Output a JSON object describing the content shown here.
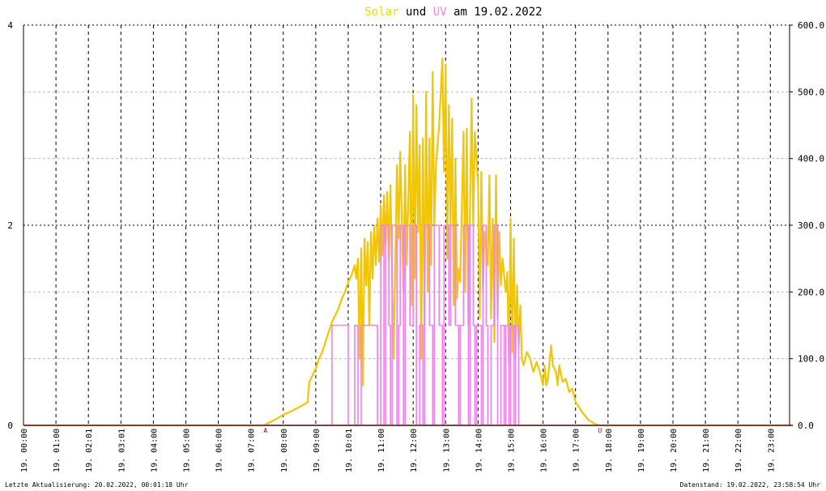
{
  "title": {
    "solar": "Solar",
    "und": "und",
    "uv": "UV",
    "rest": "am 19.02.2022"
  },
  "footer": {
    "left": "Letzte Aktualisierung: 20.02.2022, 00:01:18 Uhr",
    "right": "Datenstand: 19.02.2022, 23:58:54 Uhr"
  },
  "markers": {
    "sunrise": "A",
    "sunset": "U"
  },
  "colors": {
    "solar": "#f2c600",
    "uv": "#ee82ee",
    "baseline": "#f08080",
    "marker": "#c00000",
    "title_solar": "#ffd700",
    "title_uv": "#ee82ee",
    "grid_major": "#000000",
    "grid_minor": "#bbbbbb",
    "text": "#000000"
  },
  "chart_data": {
    "type": "line",
    "grid": true,
    "x_tick_labels": [
      "19. 00:00",
      "19. 01:00",
      "19. 02:01",
      "19. 03:01",
      "19. 04:00",
      "19. 05:00",
      "19. 06:00",
      "19. 07:00",
      "19. 08:00",
      "19. 09:00",
      "19. 10:01",
      "19. 11:00",
      "19. 12:00",
      "19. 13:00",
      "19. 14:00",
      "19. 15:00",
      "19. 16:00",
      "19. 17:00",
      "19. 18:00",
      "19. 19:00",
      "19. 20:00",
      "19. 21:00",
      "19. 22:00",
      "19. 23:00"
    ],
    "x_range_hours": [
      0,
      23.7
    ],
    "left_axis": {
      "ylim": [
        0,
        4
      ],
      "ticks": [
        0,
        2,
        4
      ]
    },
    "right_axis": {
      "ylim": [
        0,
        600
      ],
      "ticks": [
        "0.0",
        "100.0",
        "200.0",
        "300.0",
        "400.0",
        "500.0",
        "600.0"
      ]
    },
    "series": [
      {
        "name": "Solar",
        "axis": "right",
        "color": "#f2c600",
        "points": [
          [
            0,
            0
          ],
          [
            7.4,
            0
          ],
          [
            7.6,
            5
          ],
          [
            7.8,
            10
          ],
          [
            8.0,
            16
          ],
          [
            8.2,
            20
          ],
          [
            8.4,
            25
          ],
          [
            8.6,
            30
          ],
          [
            8.75,
            35
          ],
          [
            8.8,
            65
          ],
          [
            8.9,
            75
          ],
          [
            9.0,
            85
          ],
          [
            9.1,
            100
          ],
          [
            9.2,
            110
          ],
          [
            9.3,
            125
          ],
          [
            9.4,
            140
          ],
          [
            9.5,
            155
          ],
          [
            9.6,
            165
          ],
          [
            9.7,
            175
          ],
          [
            9.8,
            190
          ],
          [
            9.9,
            200
          ],
          [
            10.0,
            215
          ],
          [
            10.1,
            225
          ],
          [
            10.2,
            240
          ],
          [
            10.25,
            220
          ],
          [
            10.3,
            250
          ],
          [
            10.35,
            100
          ],
          [
            10.4,
            265
          ],
          [
            10.45,
            60
          ],
          [
            10.5,
            280
          ],
          [
            10.55,
            210
          ],
          [
            10.6,
            275
          ],
          [
            10.65,
            150
          ],
          [
            10.7,
            290
          ],
          [
            10.75,
            220
          ],
          [
            10.8,
            300
          ],
          [
            10.85,
            240
          ],
          [
            10.9,
            310
          ],
          [
            10.95,
            245
          ],
          [
            11.0,
            330
          ],
          [
            11.05,
            255
          ],
          [
            11.1,
            345
          ],
          [
            11.15,
            270
          ],
          [
            11.2,
            350
          ],
          [
            11.25,
            250
          ],
          [
            11.3,
            360
          ],
          [
            11.4,
            100
          ],
          [
            11.5,
            390
          ],
          [
            11.55,
            280
          ],
          [
            11.6,
            410
          ],
          [
            11.7,
            200
          ],
          [
            11.75,
            390
          ],
          [
            11.8,
            240
          ],
          [
            11.9,
            440
          ],
          [
            11.95,
            180
          ],
          [
            12.0,
            495
          ],
          [
            12.05,
            220
          ],
          [
            12.1,
            480
          ],
          [
            12.15,
            290
          ],
          [
            12.2,
            420
          ],
          [
            12.25,
            100
          ],
          [
            12.3,
            430
          ],
          [
            12.35,
            150
          ],
          [
            12.4,
            500
          ],
          [
            12.45,
            200
          ],
          [
            12.5,
            430
          ],
          [
            12.55,
            240
          ],
          [
            12.6,
            530
          ],
          [
            12.65,
            300
          ],
          [
            12.7,
            390
          ],
          [
            12.8,
            450
          ],
          [
            12.85,
            500
          ],
          [
            12.9,
            550
          ],
          [
            12.95,
            380
          ],
          [
            13.0,
            540
          ],
          [
            13.05,
            250
          ],
          [
            13.1,
            480
          ],
          [
            13.15,
            300
          ],
          [
            13.2,
            460
          ],
          [
            13.25,
            180
          ],
          [
            13.3,
            400
          ],
          [
            13.35,
            190
          ],
          [
            13.4,
            235
          ],
          [
            13.45,
            215
          ],
          [
            13.55,
            440
          ],
          [
            13.6,
            200
          ],
          [
            13.65,
            445
          ],
          [
            13.7,
            150
          ],
          [
            13.8,
            490
          ],
          [
            13.85,
            300
          ],
          [
            13.9,
            440
          ],
          [
            14.0,
            360
          ],
          [
            14.05,
            160
          ],
          [
            14.1,
            380
          ],
          [
            14.15,
            200
          ],
          [
            14.2,
            290
          ],
          [
            14.3,
            240
          ],
          [
            14.35,
            375
          ],
          [
            14.4,
            160
          ],
          [
            14.45,
            310
          ],
          [
            14.5,
            125
          ],
          [
            14.55,
            375
          ],
          [
            14.6,
            160
          ],
          [
            14.65,
            290
          ],
          [
            14.7,
            210
          ],
          [
            14.75,
            250
          ],
          [
            14.85,
            200
          ],
          [
            14.9,
            230
          ],
          [
            14.95,
            90
          ],
          [
            15.0,
            310
          ],
          [
            15.05,
            110
          ],
          [
            15.1,
            280
          ],
          [
            15.15,
            100
          ],
          [
            15.2,
            210
          ],
          [
            15.25,
            120
          ],
          [
            15.3,
            180
          ],
          [
            15.35,
            100
          ],
          [
            15.4,
            90
          ],
          [
            15.5,
            110
          ],
          [
            15.6,
            100
          ],
          [
            15.7,
            80
          ],
          [
            15.8,
            95
          ],
          [
            15.9,
            80
          ],
          [
            16.0,
            60
          ],
          [
            16.05,
            90
          ],
          [
            16.1,
            60
          ],
          [
            16.15,
            70
          ],
          [
            16.2,
            95
          ],
          [
            16.25,
            120
          ],
          [
            16.3,
            90
          ],
          [
            16.4,
            80
          ],
          [
            16.45,
            60
          ],
          [
            16.5,
            90
          ],
          [
            16.6,
            65
          ],
          [
            16.7,
            70
          ],
          [
            16.8,
            50
          ],
          [
            16.9,
            55
          ],
          [
            17.0,
            35
          ],
          [
            17.2,
            20
          ],
          [
            17.4,
            8
          ],
          [
            17.6,
            2
          ],
          [
            17.75,
            0
          ],
          [
            23.7,
            0
          ]
        ]
      },
      {
        "name": "UV",
        "axis": "left",
        "color": "#ee82ee",
        "points": [
          [
            0,
            0
          ],
          [
            9.5,
            0
          ],
          [
            9.5,
            1
          ],
          [
            10.0,
            1
          ],
          [
            10.0,
            0
          ],
          [
            10.2,
            0
          ],
          [
            10.2,
            1
          ],
          [
            10.3,
            1
          ],
          [
            10.3,
            0
          ],
          [
            10.4,
            0
          ],
          [
            10.4,
            1
          ],
          [
            10.9,
            1
          ],
          [
            10.9,
            0
          ],
          [
            11.0,
            0
          ],
          [
            11.0,
            2
          ],
          [
            11.1,
            2
          ],
          [
            11.1,
            0
          ],
          [
            11.15,
            0
          ],
          [
            11.15,
            2
          ],
          [
            11.25,
            2
          ],
          [
            11.25,
            1
          ],
          [
            11.3,
            1
          ],
          [
            11.3,
            0
          ],
          [
            11.35,
            0
          ],
          [
            11.35,
            2
          ],
          [
            11.5,
            2
          ],
          [
            11.5,
            0
          ],
          [
            11.55,
            0
          ],
          [
            11.55,
            1
          ],
          [
            11.6,
            1
          ],
          [
            11.6,
            2
          ],
          [
            11.7,
            2
          ],
          [
            11.7,
            0
          ],
          [
            11.75,
            0
          ],
          [
            11.75,
            2
          ],
          [
            11.9,
            2
          ],
          [
            11.9,
            1
          ],
          [
            12.0,
            1
          ],
          [
            12.0,
            2
          ],
          [
            12.1,
            2
          ],
          [
            12.1,
            0
          ],
          [
            12.2,
            0
          ],
          [
            12.2,
            1
          ],
          [
            12.3,
            1
          ],
          [
            12.3,
            0
          ],
          [
            12.35,
            0
          ],
          [
            12.35,
            2
          ],
          [
            12.5,
            2
          ],
          [
            12.5,
            1
          ],
          [
            12.6,
            1
          ],
          [
            12.6,
            0
          ],
          [
            12.65,
            0
          ],
          [
            12.65,
            2
          ],
          [
            12.8,
            2
          ],
          [
            12.8,
            1
          ],
          [
            12.9,
            1
          ],
          [
            12.9,
            0
          ],
          [
            12.95,
            0
          ],
          [
            12.95,
            2
          ],
          [
            13.1,
            2
          ],
          [
            13.1,
            1
          ],
          [
            13.15,
            1
          ],
          [
            13.15,
            2
          ],
          [
            13.3,
            2
          ],
          [
            13.3,
            1
          ],
          [
            13.4,
            1
          ],
          [
            13.4,
            0
          ],
          [
            13.45,
            0
          ],
          [
            13.45,
            1
          ],
          [
            13.55,
            1
          ],
          [
            13.55,
            2
          ],
          [
            13.7,
            2
          ],
          [
            13.7,
            0
          ],
          [
            13.75,
            0
          ],
          [
            13.75,
            2
          ],
          [
            13.85,
            2
          ],
          [
            13.85,
            1
          ],
          [
            13.9,
            1
          ],
          [
            13.9,
            0
          ],
          [
            13.95,
            0
          ],
          [
            13.95,
            1
          ],
          [
            14.1,
            1
          ],
          [
            14.1,
            0
          ],
          [
            14.15,
            0
          ],
          [
            14.15,
            2
          ],
          [
            14.25,
            2
          ],
          [
            14.25,
            1
          ],
          [
            14.3,
            1
          ],
          [
            14.3,
            0
          ],
          [
            14.4,
            0
          ],
          [
            14.4,
            1
          ],
          [
            14.5,
            1
          ],
          [
            14.5,
            2
          ],
          [
            14.6,
            2
          ],
          [
            14.6,
            0
          ],
          [
            14.7,
            0
          ],
          [
            14.7,
            1
          ],
          [
            14.8,
            1
          ],
          [
            14.8,
            0
          ],
          [
            14.85,
            0
          ],
          [
            14.85,
            1
          ],
          [
            14.95,
            1
          ],
          [
            14.95,
            0
          ],
          [
            15.0,
            0
          ],
          [
            15.0,
            1
          ],
          [
            15.1,
            1
          ],
          [
            15.1,
            0
          ],
          [
            15.15,
            0
          ],
          [
            15.15,
            1
          ],
          [
            15.25,
            1
          ],
          [
            15.25,
            0
          ],
          [
            23.7,
            0
          ]
        ]
      }
    ]
  }
}
